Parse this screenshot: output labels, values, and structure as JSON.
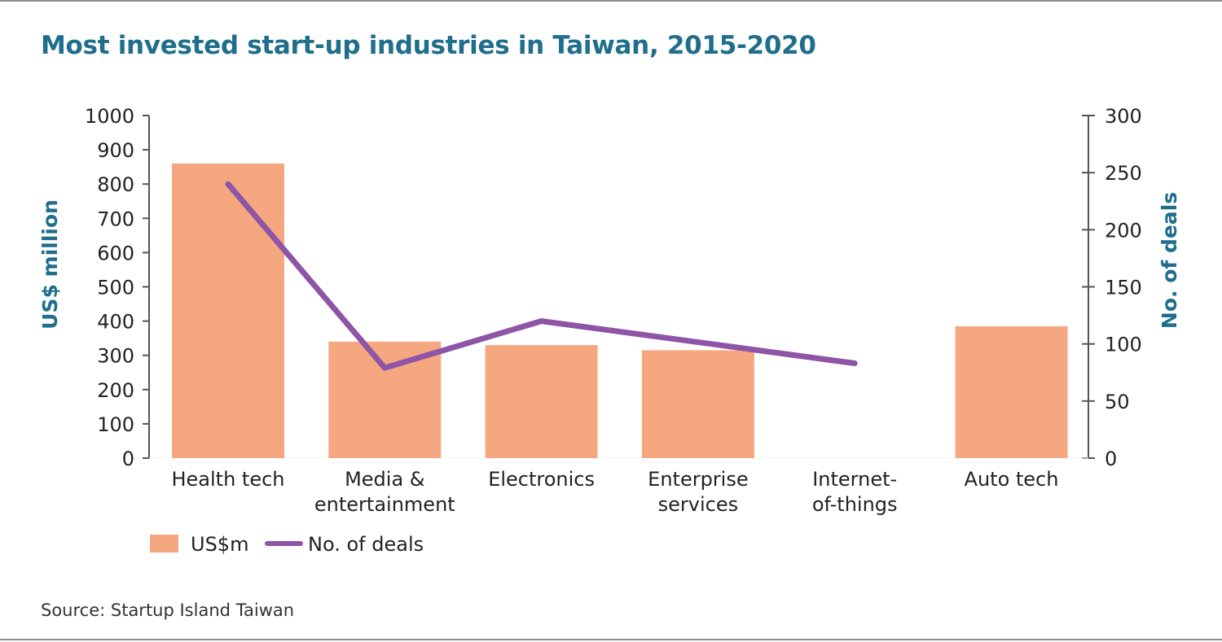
{
  "chart_data": {
    "type": "bar",
    "title": "Most invested start-up industries in Taiwan, 2015-2020",
    "categories": [
      "Health tech",
      "Media & entertainment",
      "Electronics",
      "Enterprise services",
      "Internet-of-things",
      "Auto tech"
    ],
    "category_lines": [
      [
        "Health tech"
      ],
      [
        "Media &",
        "entertainment"
      ],
      [
        "Electronics"
      ],
      [
        "Enterprise",
        "services"
      ],
      [
        "Internet-",
        "of-things"
      ],
      [
        "Auto tech"
      ]
    ],
    "series": [
      {
        "name": "US$m",
        "type": "bar",
        "axis": "left",
        "color": "#f5a880",
        "values": [
          860,
          340,
          330,
          315,
          0,
          385
        ]
      },
      {
        "name": "No. of deals",
        "type": "line",
        "axis": "right",
        "color": "#8e54a6",
        "values": [
          240,
          79,
          120,
          null,
          83,
          null
        ]
      }
    ],
    "ylabel": "US$ million",
    "y2label": "No. of deals",
    "ylim": [
      0,
      1000
    ],
    "y2lim": [
      0,
      300
    ],
    "yticks": [
      0,
      100,
      200,
      300,
      400,
      500,
      600,
      700,
      800,
      900,
      1000
    ],
    "y2ticks": [
      0,
      50,
      100,
      150,
      200,
      250,
      300
    ],
    "grid": false,
    "legend": "bottom-left"
  },
  "source": "Source: Startup Island Taiwan"
}
